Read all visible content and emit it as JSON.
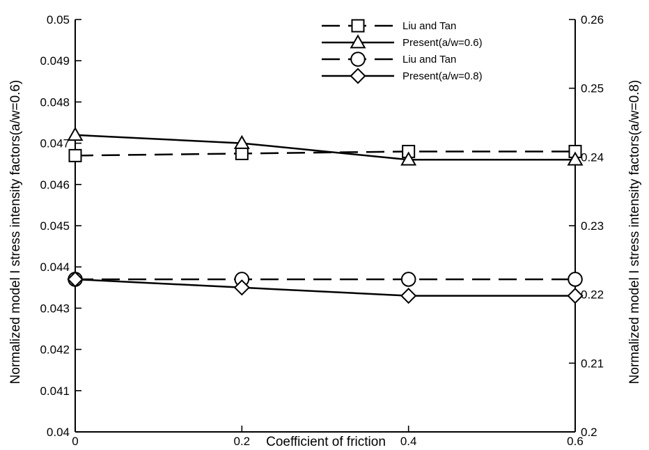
{
  "chart_data": {
    "type": "line",
    "xlabel": "Coefficient of friction",
    "ylabel_left": "Normalized model I stress intensity factors(a/w=0.6)",
    "ylabel_right": "Normalized model I stress intensity factors(a/w=0.8)",
    "xlim": [
      0,
      0.6
    ],
    "ylim_left": [
      0.04,
      0.05
    ],
    "ylim_right": [
      0.2,
      0.26
    ],
    "x_ticks": [
      "0",
      "0.2",
      "0.4",
      "0.6"
    ],
    "y_ticks_left": [
      "0.04",
      "0.041",
      "0.042",
      "0.043",
      "0.044",
      "0.045",
      "0.046",
      "0.047",
      "0.048",
      "0.049",
      "0.05"
    ],
    "y_ticks_right": [
      "0.2",
      "0.21",
      "0.22",
      "0.23",
      "0.24",
      "0.25",
      "0.26"
    ],
    "grid": false,
    "legend_position": "top-right",
    "x": [
      0,
      0.2,
      0.4,
      0.6
    ],
    "series": [
      {
        "name": "Liu and Tan",
        "axis": "left",
        "style": "dashed",
        "marker": "square",
        "values": [
          0.0467,
          0.04675,
          0.0468,
          0.0468
        ]
      },
      {
        "name": "Present(a/w=0.6)",
        "axis": "left",
        "style": "solid",
        "marker": "triangle",
        "values": [
          0.0472,
          0.047,
          0.0466,
          0.0466
        ]
      },
      {
        "name": "Liu and Tan",
        "axis": "left",
        "style": "dashed",
        "marker": "circle",
        "values": [
          0.0437,
          0.0437,
          0.0437,
          0.0437
        ]
      },
      {
        "name": "Present(a/w=0.8)",
        "axis": "left",
        "style": "solid",
        "marker": "diamond",
        "values": [
          0.0437,
          0.0435,
          0.0433,
          0.0433
        ]
      }
    ]
  }
}
